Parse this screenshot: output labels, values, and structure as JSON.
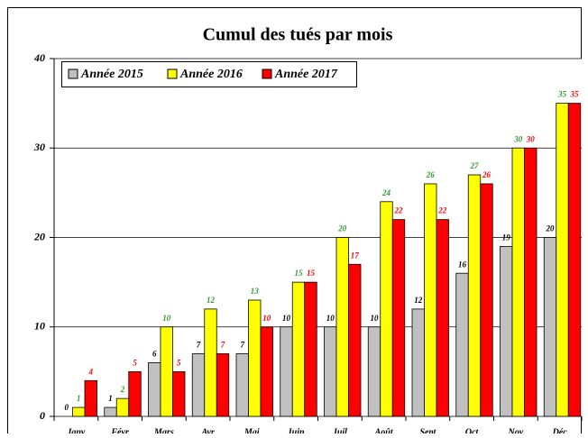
{
  "chart_data": {
    "type": "bar",
    "title": "Cumul des tués par mois",
    "categories": [
      "Janv",
      "Févr",
      "Mars",
      "Avr",
      "Mai",
      "Juin",
      "Juil",
      "Août",
      "Sept",
      "Oct",
      "Nov",
      "Déc"
    ],
    "series": [
      {
        "name": "Année 2015",
        "color": "#c0c0c0",
        "label_color": "#000000",
        "values": [
          0,
          1,
          6,
          7,
          7,
          10,
          10,
          10,
          12,
          16,
          19,
          20
        ]
      },
      {
        "name": "Année 2016",
        "color": "#ffff00",
        "label_color": "#339933",
        "values": [
          1,
          2,
          10,
          12,
          13,
          15,
          20,
          24,
          26,
          27,
          30,
          35
        ]
      },
      {
        "name": "Année 2017",
        "color": "#ff0000",
        "label_color": "#ff0000",
        "values": [
          4,
          5,
          5,
          7,
          10,
          15,
          17,
          22,
          22,
          26,
          30,
          35
        ]
      }
    ],
    "ylim": [
      0,
      40
    ],
    "yticks": [
      0,
      10,
      20,
      30,
      40
    ],
    "grid": true,
    "legend": "top-left"
  }
}
